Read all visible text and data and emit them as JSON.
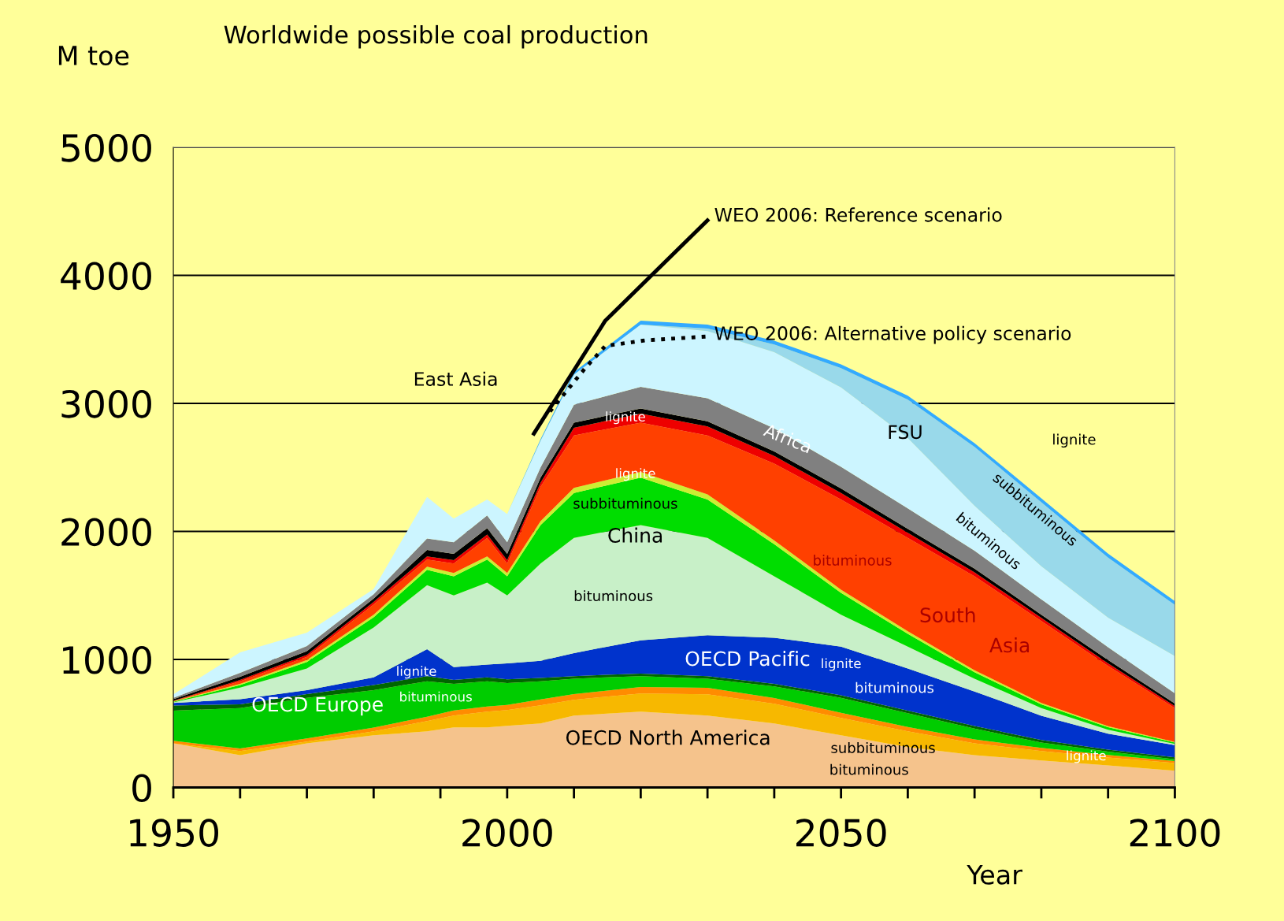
{
  "chart_data": {
    "type": "area",
    "stacked": true,
    "title": "Worldwide possible coal production",
    "ylabel": "M toe",
    "xlabel": "Year",
    "x": [
      1950,
      1960,
      1970,
      1980,
      1988,
      1992,
      1997,
      2000,
      2005,
      2010,
      2020,
      2030,
      2040,
      2050,
      2060,
      2070,
      2080,
      2090,
      2100
    ],
    "xlim": [
      1950,
      2100
    ],
    "xticks": [
      1950,
      {
        "value": 1960,
        "label": null
      },
      {
        "value": 1970,
        "label": null
      },
      {
        "value": 1980,
        "label": null
      },
      {
        "value": 1990,
        "label": null
      },
      2000,
      {
        "value": 2010,
        "label": null
      },
      {
        "value": 2020,
        "label": null
      },
      {
        "value": 2030,
        "label": null
      },
      {
        "value": 2040,
        "label": null
      },
      2050,
      {
        "value": 2060,
        "label": null
      },
      {
        "value": 2070,
        "label": null
      },
      {
        "value": 2080,
        "label": null
      },
      {
        "value": 2090,
        "label": null
      },
      2100
    ],
    "ylim": [
      0,
      5000
    ],
    "yticks": [
      0,
      1000,
      2000,
      3000,
      4000,
      5000
    ],
    "grid": "y",
    "legend": false,
    "series": [
      {
        "color": "#f5c38c",
        "values": [
          345,
          253,
          345,
          407,
          438,
          469,
          469,
          481,
          500,
          561,
          592,
          561,
          500,
          407,
          315,
          253,
          210,
          173,
          130
        ]
      },
      {
        "color": "#f7b800",
        "values": [
          0,
          31,
          13,
          31,
          80,
          92,
          123,
          124,
          142,
          124,
          142,
          167,
          154,
          136,
          123,
          92,
          74,
          61,
          61
        ]
      },
      {
        "color": "#ff8c00",
        "values": [
          20,
          20,
          25,
          30,
          35,
          40,
          40,
          40,
          45,
          45,
          50,
          50,
          45,
          40,
          35,
          30,
          25,
          20,
          15
        ]
      },
      {
        "color": "#00cc00",
        "values": [
          235,
          316,
          317,
          292,
          277,
          209,
          198,
          170,
          143,
          120,
          86,
          72,
          91,
          117,
          107,
          85,
          41,
          26,
          14
        ]
      },
      {
        "color": "#006600",
        "values": [
          40,
          30,
          30,
          40,
          40,
          30,
          30,
          30,
          25,
          20,
          20,
          20,
          20,
          20,
          20,
          20,
          20,
          15,
          15
        ]
      },
      {
        "color": "#0033cc",
        "values": [
          20,
          40,
          30,
          60,
          210,
          100,
          100,
          125,
          135,
          180,
          260,
          320,
          360,
          380,
          330,
          270,
          190,
          125,
          95
        ]
      },
      {
        "color": "#c8f0c8",
        "values": [
          5,
          90,
          170,
          390,
          500,
          560,
          640,
          530,
          760,
          900,
          900,
          760,
          480,
          250,
          170,
          100,
          60,
          30,
          10
        ]
      },
      {
        "color": "#00dd00",
        "values": [
          5,
          20,
          50,
          80,
          120,
          150,
          180,
          150,
          300,
          350,
          370,
          300,
          250,
          170,
          100,
          50,
          30,
          20,
          10
        ]
      },
      {
        "color": "#ccee33",
        "values": [
          2,
          10,
          15,
          20,
          25,
          25,
          25,
          25,
          30,
          40,
          45,
          40,
          30,
          25,
          20,
          15,
          10,
          8,
          5
        ]
      },
      {
        "color": "#ff4000",
        "values": [
          3,
          20,
          25,
          80,
          55,
          75,
          145,
          75,
          270,
          410,
          385,
          460,
          600,
          705,
          730,
          735,
          640,
          472,
          265
        ]
      },
      {
        "color": "#ee0000",
        "values": [
          2,
          10,
          15,
          20,
          25,
          25,
          25,
          25,
          30,
          60,
          70,
          70,
          60,
          50,
          40,
          30,
          25,
          20,
          15
        ]
      },
      {
        "color": "#000000",
        "values": [
          13,
          25,
          30,
          25,
          50,
          50,
          50,
          50,
          40,
          40,
          40,
          40,
          35,
          35,
          30,
          30,
          25,
          25,
          20
        ]
      },
      {
        "color": "#808080",
        "values": [
          10,
          30,
          40,
          35,
          90,
          90,
          100,
          90,
          80,
          140,
          170,
          180,
          180,
          170,
          160,
          140,
          120,
          100,
          80
        ]
      },
      {
        "color": "#ccf5ff",
        "values": [
          28,
          160,
          105,
          40,
          325,
          185,
          125,
          220,
          210,
          235,
          486,
          525,
          595,
          620,
          550,
          350,
          258,
          231,
          291
        ]
      },
      {
        "color": "#99d9ea",
        "values": [
          0,
          0,
          0,
          0,
          0,
          0,
          0,
          0,
          0,
          0,
          0,
          20,
          60,
          150,
          300,
          460,
          500,
          470,
          400
        ]
      },
      {
        "color": "#33aaff",
        "values": [
          0,
          0,
          0,
          0,
          0,
          0,
          0,
          0,
          10,
          20,
          30,
          30,
          30,
          30,
          30,
          30,
          30,
          30,
          30
        ]
      },
      {
        "type": "line",
        "color": "#000000",
        "line_style": "solid",
        "x": [
          2004,
          2014.7,
          2030
        ],
        "values": [
          2764,
          3647,
          4430
        ]
      },
      {
        "type": "line",
        "color": "#000000",
        "line_style": "dotted",
        "x": [
          2006.4,
          2011.7,
          2014.7,
          2020.6,
          2030
        ],
        "values": [
          2937,
          3276,
          3449,
          3492,
          3523
        ]
      }
    ],
    "annotations": [
      "WEO 2006: Reference scenario",
      "WEO 2006: Alternative policy scenario",
      "East Asia",
      "lignite",
      "Africa",
      "FSU",
      "lignite",
      "subbituminous",
      "bituminous",
      "lignite",
      "subbituminous",
      "China",
      "bituminous",
      "bituminous",
      "South",
      "Asia",
      "OECD Pacific",
      "lignite",
      "bituminous",
      "OECD Europe",
      "lignite",
      "bituminous",
      "OECD North America",
      "subbituminous",
      "bituminous",
      "lignite"
    ]
  }
}
